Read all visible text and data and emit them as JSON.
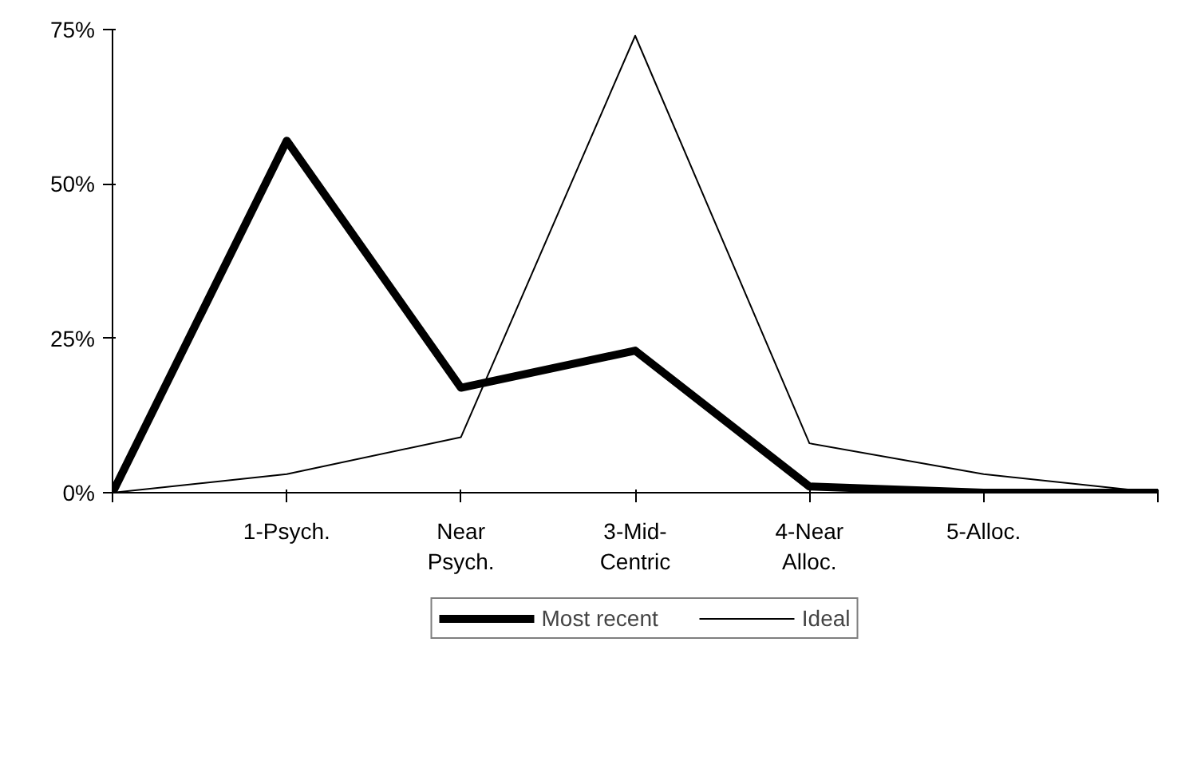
{
  "chart_data": {
    "type": "line",
    "categories": [
      null,
      "1-Psych.",
      "Near\nPsych.",
      "3-Mid-\nCentric",
      "4-Near\nAlloc.",
      "5-Alloc.",
      null
    ],
    "series": [
      {
        "name": "Most recent",
        "color": "#000000",
        "values": [
          0,
          57,
          17,
          23,
          1,
          0,
          0
        ]
      },
      {
        "name": "Ideal",
        "color": "#000000",
        "values": [
          0,
          3,
          9,
          74,
          8,
          3,
          0
        ]
      }
    ],
    "ylim": [
      0,
      75
    ],
    "yticks": [
      {
        "value": 0,
        "label": "0%"
      },
      {
        "value": 25,
        "label": "25%"
      },
      {
        "value": 50,
        "label": "50%"
      },
      {
        "value": 75,
        "label": "75%"
      }
    ],
    "grid": false,
    "legend": "bottom",
    "marker": "none",
    "line_style": "solid"
  }
}
